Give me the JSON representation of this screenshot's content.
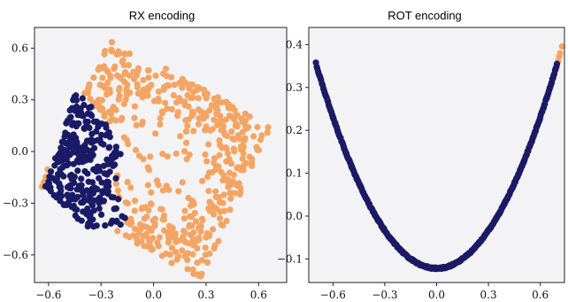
{
  "colors": {
    "orange": "#f4a564",
    "navy": "#1a1a66",
    "panel_bg": "#f3f3f5"
  },
  "chart_data": [
    {
      "type": "scatter",
      "title": "RX encoding",
      "xlabel": "",
      "ylabel": "",
      "xlim": [
        -0.68,
        0.76
      ],
      "ylim": [
        -0.76,
        0.72
      ],
      "xticks": [
        -0.6,
        -0.3,
        0.0,
        0.3,
        0.6
      ],
      "yticks": [
        -0.6,
        -0.3,
        0.0,
        0.3,
        0.6
      ],
      "xtick_labels": [
        "−0.6",
        "−0.3",
        "0.0",
        "0.3",
        "0.6"
      ],
      "ytick_labels": [
        "−0.6",
        "−0.3",
        "0.0",
        "0.3",
        "0.6"
      ],
      "grid": false,
      "legend": "none",
      "series": [
        {
          "color": "#f4a564",
          "shape": "rotated square region (corners approx.)",
          "corners": [
            [
              -0.25,
              0.66
            ],
            [
              0.68,
              0.14
            ],
            [
              0.06,
              -0.74
            ],
            [
              -0.66,
              -0.22
            ]
          ],
          "approx_count": 520
        },
        {
          "color": "#1a1a66",
          "shape": "left lobe region (vertices approx.)",
          "polygon": [
            [
              -0.62,
              -0.2
            ],
            [
              -0.44,
              0.36
            ],
            [
              -0.3,
              0.2
            ],
            [
              -0.18,
              0.0
            ],
            [
              -0.22,
              -0.2
            ],
            [
              -0.14,
              -0.45
            ],
            [
              -0.4,
              -0.44
            ]
          ],
          "approx_count": 300
        }
      ]
    },
    {
      "type": "scatter",
      "title": "ROT encoding",
      "xlabel": "",
      "ylabel": "",
      "xlim": [
        -0.74,
        0.74
      ],
      "ylim": [
        -0.155,
        0.44
      ],
      "xticks": [
        -0.6,
        -0.3,
        0.0,
        0.3,
        0.6
      ],
      "yticks": [
        -0.1,
        0.0,
        0.1,
        0.2,
        0.3,
        0.4
      ],
      "xtick_labels": [
        "−0.6",
        "−0.3",
        "0.0",
        "0.3",
        "0.6"
      ],
      "ytick_labels": [
        "−0.1",
        "0.0",
        "0.1",
        "0.2",
        "0.3",
        "0.4"
      ],
      "grid": false,
      "legend": "none",
      "series": [
        {
          "color": "#f4a564",
          "shape": "parabola y = 0.98·x² − 0.122",
          "x_range": [
            -0.66,
            0.73
          ],
          "approx_count": 180
        },
        {
          "color": "#1a1a66",
          "shape": "parabola y = 0.98·x² − 0.122",
          "x_range": [
            -0.7,
            0.7
          ],
          "approx_count": 360
        }
      ]
    }
  ]
}
